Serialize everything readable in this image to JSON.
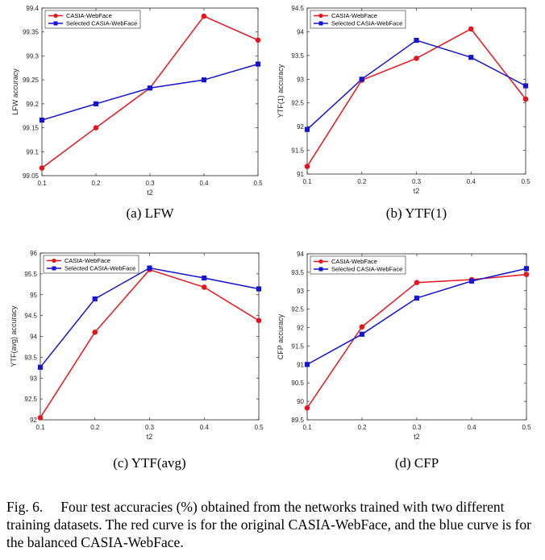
{
  "chart_data": [
    {
      "type": "line",
      "xlabel": "t2",
      "ylabel": "LFW accuracy",
      "sub_caption": "(a)  LFW",
      "x": [
        0.1,
        0.2,
        0.3,
        0.4,
        0.5
      ],
      "xticks": [
        "0.1",
        "0.2",
        "0.3",
        "0.4",
        "0.5"
      ],
      "ylim": [
        99.05,
        99.4
      ],
      "yticks": [
        "99.05",
        "99.1",
        "99.15",
        "99.2",
        "99.25",
        "99.3",
        "99.35",
        "99.4"
      ],
      "legend_position": "top-left",
      "series": [
        {
          "name": "CASIA-WebFace",
          "color": "#e8141c",
          "marker": "circle",
          "values": [
            99.066,
            99.15,
            99.233,
            99.383,
            99.333
          ]
        },
        {
          "name": "Selected CASIA-WebFace",
          "color": "#1414d2",
          "marker": "square",
          "values": [
            99.166,
            99.2,
            99.233,
            99.25,
            99.283
          ]
        }
      ]
    },
    {
      "type": "line",
      "xlabel": "t2",
      "ylabel": "YTF(1) accuracy",
      "sub_caption": "(b)  YTF(1)",
      "x": [
        0.1,
        0.2,
        0.3,
        0.4,
        0.5
      ],
      "xticks": [
        "0.1",
        "0.2",
        "0.3",
        "0.4",
        "0.5"
      ],
      "ylim": [
        91,
        94.5
      ],
      "yticks": [
        "91",
        "91.5",
        "92",
        "92.5",
        "93",
        "93.5",
        "94",
        "94.5"
      ],
      "legend_position": "top-left",
      "series": [
        {
          "name": "CASIA-WebFace",
          "color": "#e8141c",
          "marker": "circle",
          "values": [
            91.16,
            92.98,
            93.44,
            94.06,
            92.58
          ]
        },
        {
          "name": "Selected CASIA-WebFace",
          "color": "#1414d2",
          "marker": "square",
          "values": [
            91.94,
            93.0,
            93.82,
            93.46,
            92.86
          ]
        }
      ]
    },
    {
      "type": "line",
      "xlabel": "t2",
      "ylabel": "YTF(avg) accuracy",
      "sub_caption": "(c)  YTF(avg)",
      "x": [
        0.1,
        0.2,
        0.3,
        0.4,
        0.5
      ],
      "xticks": [
        "0.1",
        "0.2",
        "0.3",
        "0.4",
        "0.5"
      ],
      "ylim": [
        92,
        96
      ],
      "yticks": [
        "92",
        "92.5",
        "93",
        "93.5",
        "94",
        "94.5",
        "95",
        "95.5",
        "96"
      ],
      "legend_position": "top-left",
      "series": [
        {
          "name": "CASIA-WebFace",
          "color": "#e8141c",
          "marker": "circle",
          "values": [
            92.05,
            94.1,
            95.6,
            95.18,
            94.38
          ]
        },
        {
          "name": "Selected CASIA-WebFace",
          "color": "#1414d2",
          "marker": "square",
          "values": [
            93.26,
            94.9,
            95.64,
            95.4,
            95.14
          ]
        }
      ]
    },
    {
      "type": "line",
      "xlabel": "t2",
      "ylabel": "CFP accuracy",
      "sub_caption": "(d)  CFP",
      "x": [
        0.1,
        0.2,
        0.3,
        0.4,
        0.5
      ],
      "xticks": [
        "0.1",
        "0.2",
        "0.3",
        "0.4",
        "0.5"
      ],
      "ylim": [
        89.5,
        94
      ],
      "yticks": [
        "89.5",
        "90",
        "90.5",
        "91",
        "91.5",
        "92",
        "92.5",
        "93",
        "93.5",
        "94"
      ],
      "legend_position": "top-left",
      "series": [
        {
          "name": "CASIA-WebFace",
          "color": "#e8141c",
          "marker": "circle",
          "values": [
            89.82,
            92.02,
            93.22,
            93.3,
            93.44
          ]
        },
        {
          "name": "Selected CASIA-WebFace",
          "color": "#1414d2",
          "marker": "square",
          "values": [
            91.0,
            91.82,
            92.8,
            93.26,
            93.6
          ]
        }
      ]
    }
  ],
  "caption": {
    "number": "Fig. 6.",
    "text": "Four test accuracies (%) obtained from the networks trained with two different training datasets. The red curve is for the original CASIA-WebFace, and the blue curve is for the balanced CASIA-WebFace."
  }
}
